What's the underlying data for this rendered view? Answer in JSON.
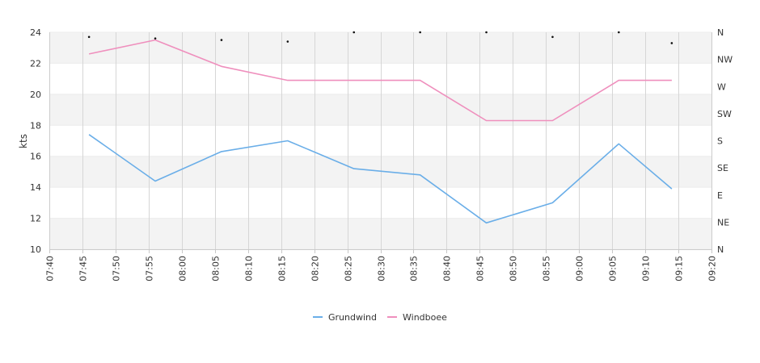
{
  "chart_data": {
    "type": "line",
    "ylabel": "kts",
    "ylim": [
      10,
      24
    ],
    "yticks": [
      10,
      12,
      14,
      16,
      18,
      20,
      22,
      24
    ],
    "xlim": [
      "07:40",
      "09:20"
    ],
    "xticks": [
      "07:40",
      "07:45",
      "07:50",
      "07:55",
      "08:00",
      "08:05",
      "08:10",
      "08:15",
      "08:20",
      "08:25",
      "08:30",
      "08:35",
      "08:40",
      "08:45",
      "08:50",
      "08:55",
      "09:00",
      "09:05",
      "09:10",
      "09:15",
      "09:20"
    ],
    "y2_ticks": [
      "N",
      "NE",
      "E",
      "SE",
      "S",
      "SW",
      "W",
      "NW",
      "N"
    ],
    "bands_shaded": true,
    "grid": "vertical",
    "legend_position": "bottom",
    "x": [
      "07:46",
      "07:56",
      "08:06",
      "08:16",
      "08:26",
      "08:36",
      "08:46",
      "08:56",
      "09:06",
      "09:14"
    ],
    "series": [
      {
        "name": "Grundwind",
        "color": "#6aaee8",
        "values": [
          17.4,
          14.4,
          16.3,
          17.0,
          15.2,
          14.8,
          11.7,
          13.0,
          16.8,
          13.9
        ]
      },
      {
        "name": "Windboee",
        "color": "#ef8fbd",
        "values": [
          22.6,
          23.5,
          21.8,
          20.9,
          20.9,
          20.9,
          18.3,
          18.3,
          20.9,
          20.9
        ]
      }
    ],
    "direction_markers": [
      {
        "x": "07:46",
        "y": 23.7
      },
      {
        "x": "07:56",
        "y": 23.6
      },
      {
        "x": "08:06",
        "y": 23.5
      },
      {
        "x": "08:16",
        "y": 23.4
      },
      {
        "x": "08:26",
        "y": 24.0
      },
      {
        "x": "08:36",
        "y": 24.0
      },
      {
        "x": "08:46",
        "y": 24.0
      },
      {
        "x": "08:56",
        "y": 23.7
      },
      {
        "x": "09:06",
        "y": 24.0
      },
      {
        "x": "09:14",
        "y": 23.3
      }
    ]
  }
}
